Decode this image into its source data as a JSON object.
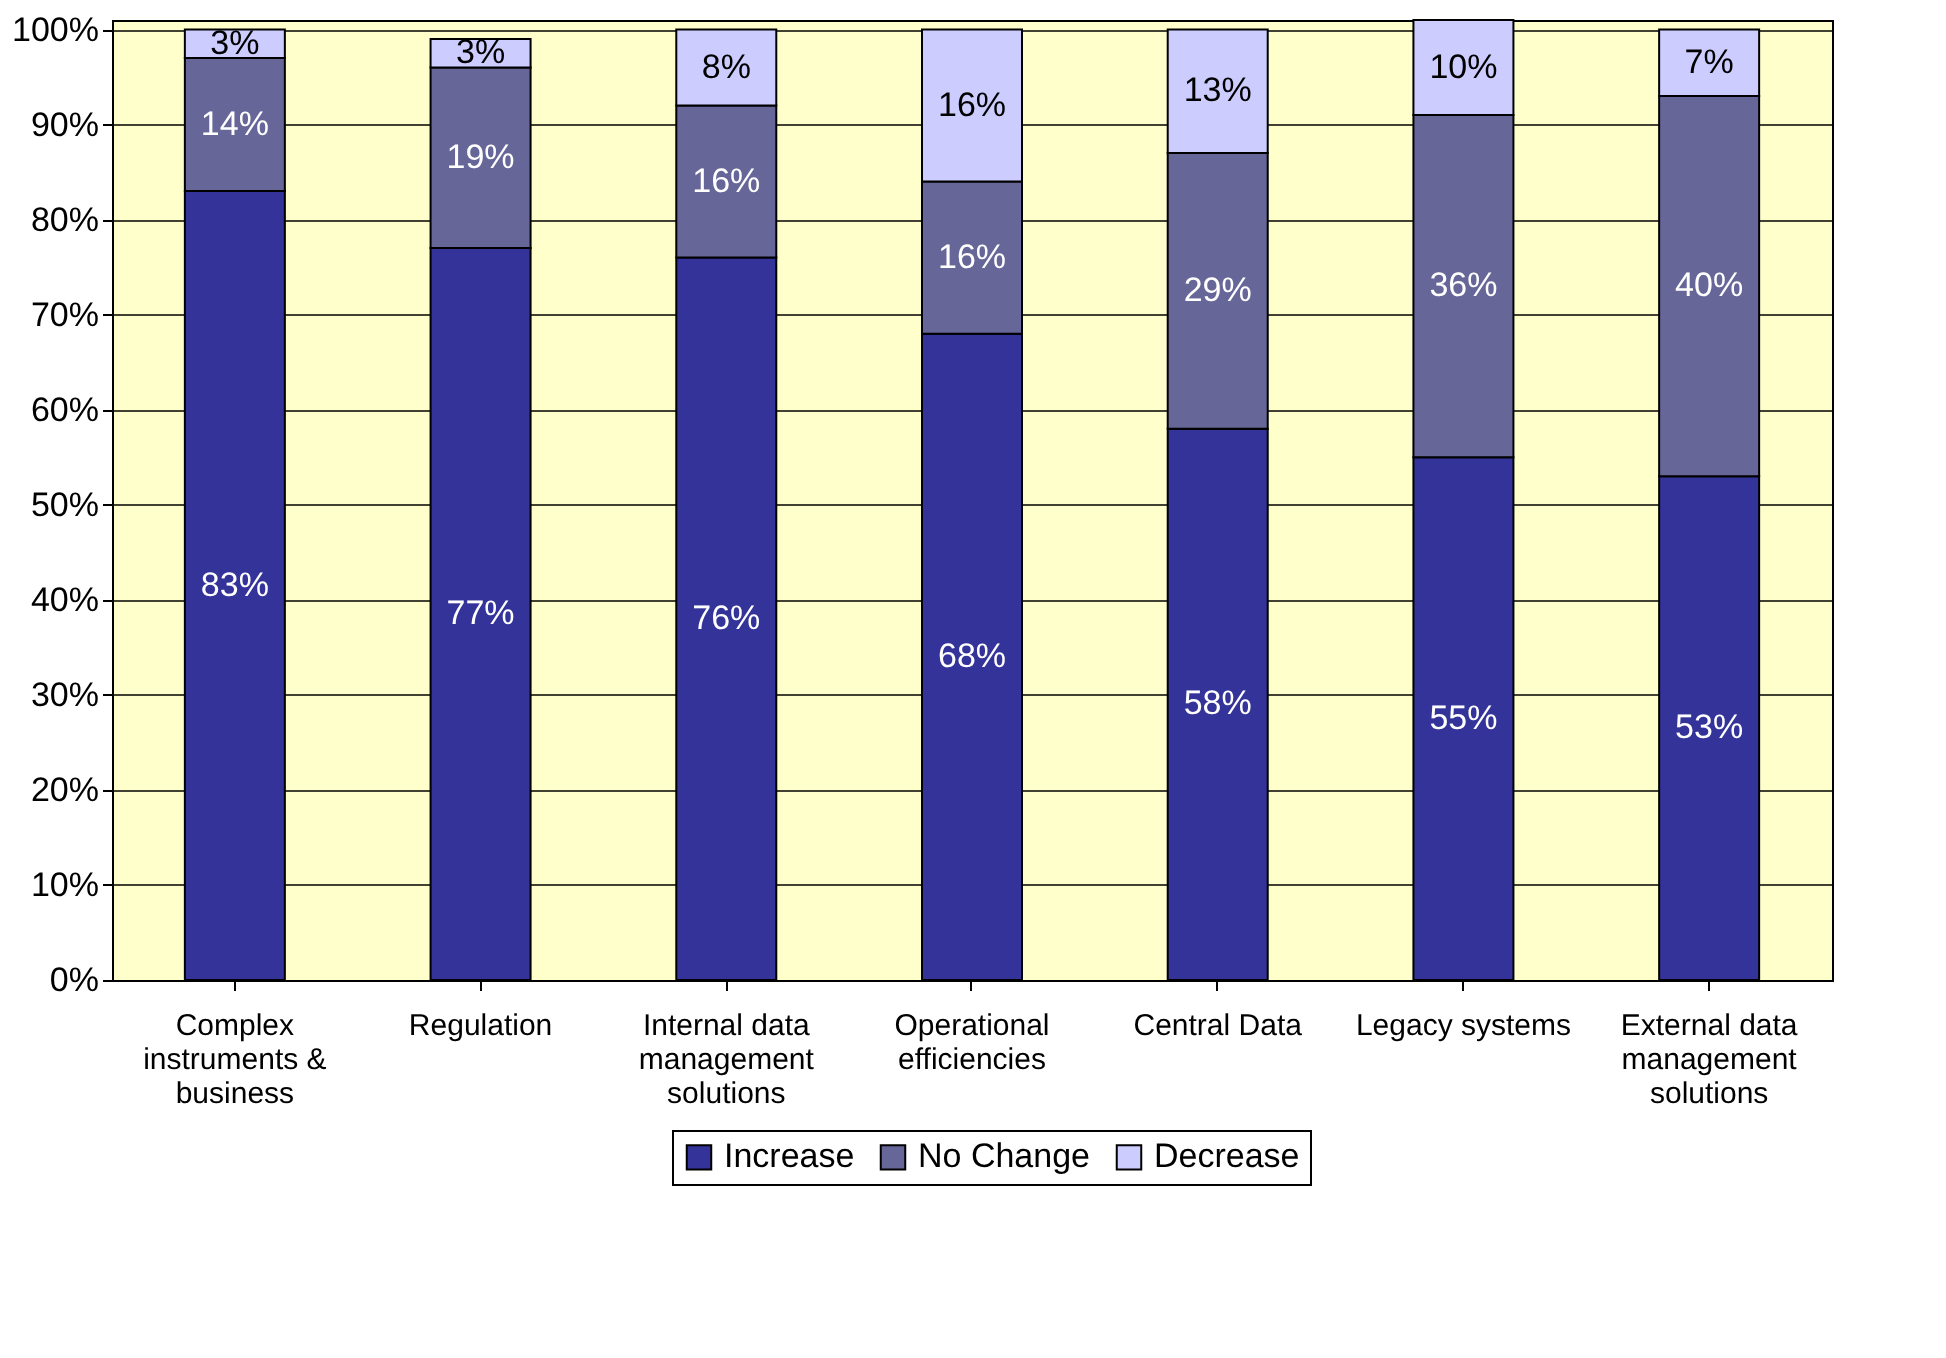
{
  "chart_data": {
    "type": "bar",
    "stacked": true,
    "grid": "y",
    "legend": "bottom",
    "categories": [
      "Complex instruments & business",
      "Regulation",
      "Internal data management solutions",
      "Operational efficiencies",
      "Central Data",
      "Legacy systems",
      "External data management solutions"
    ],
    "series": [
      {
        "name": "Increase",
        "color": "#333399",
        "values": [
          83,
          77,
          76,
          68,
          58,
          55,
          53
        ],
        "value_labels": [
          "83%",
          "77%",
          "76%",
          "68%",
          "58%",
          "55%",
          "53%"
        ]
      },
      {
        "name": "No Change",
        "color": "#666699",
        "values": [
          14,
          19,
          16,
          16,
          29,
          36,
          40
        ],
        "value_labels": [
          "14%",
          "19%",
          "16%",
          "16%",
          "29%",
          "36%",
          "40%"
        ]
      },
      {
        "name": "Decrease",
        "color": "#ccccff",
        "values": [
          3,
          3,
          8,
          16,
          13,
          10,
          7
        ],
        "value_labels": [
          "3%",
          "3%",
          "8%",
          "16%",
          "13%",
          "10%",
          "7%"
        ]
      }
    ],
    "ylim": [
      0,
      101
    ],
    "yticks": [
      {
        "value": 0,
        "label": "0%"
      },
      {
        "value": 10,
        "label": "10%"
      },
      {
        "value": 20,
        "label": "20%"
      },
      {
        "value": 30,
        "label": "30%"
      },
      {
        "value": 40,
        "label": "40%"
      },
      {
        "value": 50,
        "label": "50%"
      },
      {
        "value": 60,
        "label": "60%"
      },
      {
        "value": 70,
        "label": "70%"
      },
      {
        "value": 80,
        "label": "80%"
      },
      {
        "value": 90,
        "label": "90%"
      },
      {
        "value": 100,
        "label": "100%"
      }
    ]
  }
}
